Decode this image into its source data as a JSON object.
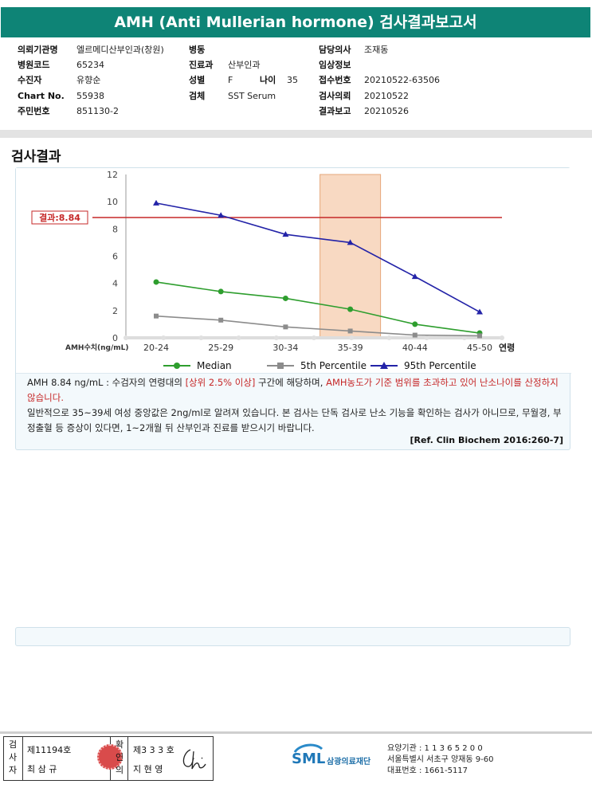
{
  "report": {
    "title": "AMH (Anti Mullerian hormone) 검사결과보고서"
  },
  "patient_info": {
    "institution_label": "의뢰기관명",
    "institution": "엘르메디산부인과(창원)",
    "ward_label": "병동",
    "ward": "",
    "doctor_label": "담당의사",
    "doctor": "조재동",
    "hospital_code_label": "병원코드",
    "hospital_code": "65234",
    "department_label": "진료과",
    "department": "산부인과",
    "clinical_info_label": "임상정보",
    "clinical_info": "",
    "examinee_label": "수진자",
    "examinee": "유향순",
    "sex_label": "성별",
    "sex": "F",
    "age_label": "나이",
    "age": "35",
    "receipt_no_label": "접수번호",
    "receipt_no": "20210522-63506",
    "chart_no_label": "Chart No.",
    "chart_no": "55938",
    "specimen_label": "검체",
    "specimen": "SST Serum",
    "request_date_label": "검사의뢰",
    "request_date": "20210522",
    "id_no_label": "주민번호",
    "id_no": "851130-2",
    "report_date_label": "결과보고",
    "report_date": "20210526"
  },
  "section": {
    "title": "검사결과"
  },
  "chart_data": {
    "type": "line",
    "categories": [
      "20-24",
      "25-29",
      "30-34",
      "35-39",
      "40-44",
      "45-50"
    ],
    "x_suffix_label": "연령",
    "ylabel": "AMH수치(ng/mL)",
    "ylim": [
      0,
      12
    ],
    "yticks": [
      "0",
      "2",
      "4",
      "6",
      "8",
      "10",
      "12"
    ],
    "series": [
      {
        "name": "Median",
        "color": "#2e9e2e",
        "marker": "circle",
        "values": [
          4.1,
          3.4,
          2.9,
          2.1,
          1.0,
          0.35
        ]
      },
      {
        "name": "5th Percentile",
        "color": "#8c8c8c",
        "marker": "square",
        "values": [
          1.6,
          1.3,
          0.8,
          0.5,
          0.2,
          0.15
        ]
      },
      {
        "name": "95th Percentile",
        "color": "#2323a8",
        "marker": "triangle",
        "values": [
          9.9,
          9.0,
          7.6,
          7.0,
          4.5,
          1.9
        ]
      }
    ],
    "result_line": {
      "label": "결과:8.84",
      "value": 8.84,
      "color": "#c62828"
    },
    "highlight_band": {
      "category": "35-39",
      "color": "#f8d9c2"
    }
  },
  "interpretation": {
    "p1_a": "AMH  8.84 ng/mL : 수검자의 연령대의 ",
    "p1_red1": "[상위 2.5% 이상]",
    "p1_b": " 구간에 해당하며, ",
    "p1_red2": "AMH농도가 기준 범위를 초과하고 있어 난소나이를 산정하지 않습니다.",
    "p2": "일반적으로 35~39세 여성 중앙값은 2ng/ml로 알려져 있습니다. 본 검사는 단독 검사로 난소 기능을 확인하는 검사가 아니므로, 무월경, 부정출혈 등 증상이 있다면, 1~2개월 뒤 산부인과 진료를 받으시기 바랍니다.",
    "reference": "[Ref. Clin Biochem 2016:260-7]"
  },
  "footer": {
    "examiner_label": "검사자",
    "examiner_no": "제11194호",
    "examiner_name": "최 삼 규",
    "confirmer_label": "확인의",
    "confirmer_no": "제3 3 3 호",
    "confirmer_name": "지 현 영",
    "logo_text": "SML",
    "logo_org": "삼광의료재단",
    "lab_line1": "요양기관 : 1 1 3 6 5 2 0 0",
    "lab_line2": "서울특별시 서초구 양재동 9-60",
    "lab_line3": "대표번호 : 1661-5117"
  }
}
